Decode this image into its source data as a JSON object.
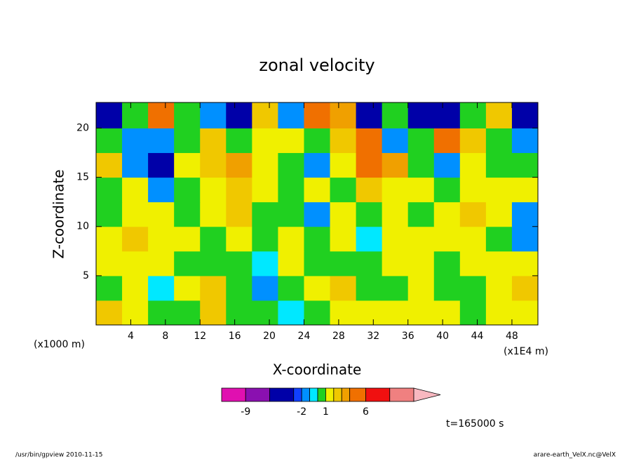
{
  "chart_data": {
    "type": "contour",
    "title": "zonal velocity",
    "xlabel": "X-coordinate",
    "ylabel": "Z-coordinate",
    "x_unit_left": "(x1000 m)",
    "x_unit_right": "(x1E4 m)",
    "time_label": "t=165000 s",
    "footer_left": "/usr/bin/gpview  2010-11-15",
    "footer_right": "arare-earth_VelX.nc@VelX",
    "xlim": [
      0,
      51
    ],
    "ylim": [
      0,
      22.6
    ],
    "xticks": [
      4,
      8,
      12,
      16,
      20,
      24,
      28,
      32,
      36,
      40,
      44,
      48
    ],
    "yticks": [
      5,
      10,
      15,
      20
    ],
    "x": [
      1.5,
      4.5,
      7.5,
      10.5,
      13.5,
      16.5,
      19.5,
      22.5,
      25.5,
      28.5,
      31.5,
      34.5,
      37.5,
      40.5,
      43.5,
      46.5,
      49.5
    ],
    "y": [
      1.25,
      3.75,
      6.25,
      8.75,
      11.25,
      13.75,
      16.25,
      18.75,
      21.25
    ],
    "values": [
      [
        2,
        1.5,
        0.5,
        0.5,
        2,
        0.5,
        0.5,
        -1,
        0.5,
        1.5,
        1.5,
        1.5,
        1.5,
        1.5,
        0.5,
        1.5,
        1.5
      ],
      [
        0.5,
        1.5,
        -1,
        1.5,
        2,
        0.5,
        -2,
        0.5,
        1.5,
        2.5,
        0.5,
        0.5,
        1.5,
        0.5,
        0.5,
        1.5,
        2.5
      ],
      [
        1.5,
        1.5,
        1.5,
        0.5,
        0.5,
        0.5,
        -1,
        1.5,
        0.5,
        0.5,
        0.5,
        1.5,
        1.5,
        0.5,
        1.5,
        1.5,
        1.5
      ],
      [
        1.5,
        2.5,
        1.5,
        1.5,
        0.5,
        1.5,
        0.5,
        1.5,
        0.5,
        1.5,
        -1,
        1.5,
        1.5,
        1.5,
        1.5,
        0.5,
        -1.5
      ],
      [
        0.5,
        1.5,
        1.5,
        0.5,
        1.5,
        2.5,
        0.5,
        0.5,
        -1.5,
        1.5,
        0.5,
        1.5,
        0.5,
        1.5,
        2.5,
        1.5,
        -1.5
      ],
      [
        0.5,
        1.5,
        -1.5,
        0.5,
        1.5,
        2.5,
        1.5,
        0.5,
        1.5,
        0.5,
        2.5,
        1.5,
        1.5,
        0.5,
        1.5,
        1.5,
        1.5
      ],
      [
        2.5,
        -1.5,
        -3.5,
        1.5,
        2.5,
        3.5,
        1.5,
        0.5,
        -1.5,
        1.5,
        4.5,
        3.5,
        0.5,
        -1.5,
        1.5,
        0.5,
        0.5
      ],
      [
        0.5,
        -1.5,
        -1.5,
        0.5,
        2.5,
        0.5,
        1.5,
        1.5,
        0.5,
        2.5,
        4.5,
        -1.5,
        0.5,
        5,
        2.5,
        0.5,
        -1.5
      ],
      [
        -4,
        0.5,
        5,
        0.5,
        -1.5,
        -3.5,
        2.5,
        -1.5,
        4.5,
        3.5,
        -4,
        0.5,
        -4,
        -4,
        0.5,
        2.5,
        -4
      ]
    ],
    "levels": [
      -12,
      -9,
      -6,
      -3,
      -2,
      -1,
      0,
      1,
      2,
      3,
      4,
      6,
      9,
      12
    ],
    "colors": [
      "#e010b0",
      "#8a10b0",
      "#0000a8",
      "#1040ff",
      "#0090ff",
      "#00e8ff",
      "#20d020",
      "#f0f000",
      "#f0c800",
      "#f0a000",
      "#f07000",
      "#f01010",
      "#f08080"
    ],
    "extend_color": "#f8b8c0",
    "colorbar_ticks": [
      -9,
      -2,
      1,
      6
    ]
  }
}
